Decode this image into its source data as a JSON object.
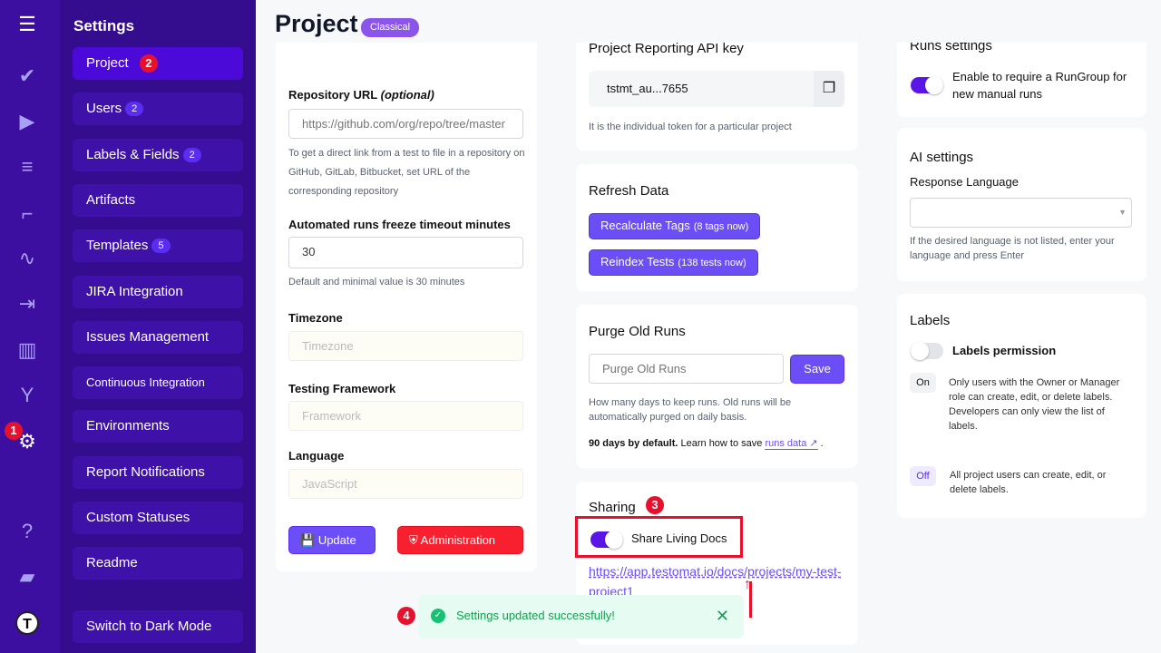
{
  "rail": {
    "icons": [
      "menu-icon",
      "check-icon",
      "play-icon",
      "list-check-icon",
      "steps-icon",
      "pulse-icon",
      "import-icon",
      "chart-icon",
      "branch-icon",
      "gear-icon",
      "help-icon",
      "folder-icon",
      "logo-icon"
    ],
    "badge": "1"
  },
  "sidebar": {
    "title": "Settings",
    "items": [
      {
        "label": "Project",
        "badge": "2"
      },
      {
        "label": "Users",
        "count": "2"
      },
      {
        "label": "Labels & Fields",
        "count": "2"
      },
      {
        "label": "Artifacts"
      },
      {
        "label": "Templates",
        "count": "5"
      },
      {
        "label": "JIRA Integration"
      },
      {
        "label": "Issues Management"
      },
      {
        "label": "Continuous Integration"
      },
      {
        "label": "Environments"
      },
      {
        "label": "Report Notifications"
      },
      {
        "label": "Custom Statuses"
      },
      {
        "label": "Readme"
      }
    ],
    "dark_mode": "Switch to Dark Mode"
  },
  "page": {
    "title": "Project",
    "badge": "Classical"
  },
  "project_form": {
    "repo_label": "Repository URL",
    "repo_optional": "(optional)",
    "repo_placeholder": "https://github.com/org/repo/tree/master",
    "repo_hint": "To get a direct link from a test to file in a repository on GitHub, GitLab, Bitbucket, set URL of the corresponding repository",
    "freeze_label": "Automated runs freeze timeout minutes",
    "freeze_value": "30",
    "freeze_hint": "Default and minimal value is 30 minutes",
    "timezone_label": "Timezone",
    "timezone_placeholder": "Timezone",
    "framework_label": "Testing Framework",
    "framework_placeholder": "Framework",
    "language_label": "Language",
    "language_placeholder": "JavaScript",
    "update": "Update",
    "administration": "Administration"
  },
  "api_key": {
    "title": "Project Reporting API key",
    "value": "tstmt_au...7655",
    "hint": "It is the individual token for a particular project"
  },
  "refresh": {
    "title": "Refresh Data",
    "recalc": "Recalculate Tags",
    "recalc_note": "(8 tags now)",
    "reindex": "Reindex Tests",
    "reindex_note": "(138 tests now)"
  },
  "purge": {
    "title": "Purge Old Runs",
    "placeholder": "Purge Old Runs",
    "save": "Save",
    "hint": "How many days to keep runs. Old runs will be automatically purged on daily basis.",
    "bold": "90 days by default.",
    "learn": "Learn how to save",
    "link": "runs data"
  },
  "sharing": {
    "title": "Sharing",
    "badge": "3",
    "toggle_label": "Share Living Docs",
    "toggle_on": true,
    "url": "https://app.testomat.io/docs/projects/my-test-project1"
  },
  "runs": {
    "title": "Runs settings",
    "toggle_label": "Enable to require a RunGroup for new manual runs",
    "toggle_on": true
  },
  "ai": {
    "title": "AI settings",
    "lang_label": "Response Language",
    "lang_value": "",
    "hint": "If the desired language is not listed, enter your language and press Enter"
  },
  "labels": {
    "title": "Labels",
    "toggle_label": "Labels permission",
    "toggle_on": false,
    "on_tag": "On",
    "on_text": "Only users with the Owner or Manager role can create, edit, or delete labels.",
    "on_text2": "Developers can only view the list of labels.",
    "off_tag": "Off",
    "off_text": "All project users can create, edit, or delete labels."
  },
  "toast": {
    "badge": "4",
    "message": "Settings updated successfully!",
    "color": "#12a150"
  }
}
